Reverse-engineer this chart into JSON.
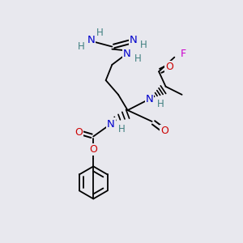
{
  "bg_color": "#e8e8ee",
  "atom_colors": {
    "C": "#000000",
    "N": "#0000cc",
    "O": "#cc0000",
    "F": "#cc00cc",
    "H": "#408080"
  },
  "bond_color": "#000000"
}
